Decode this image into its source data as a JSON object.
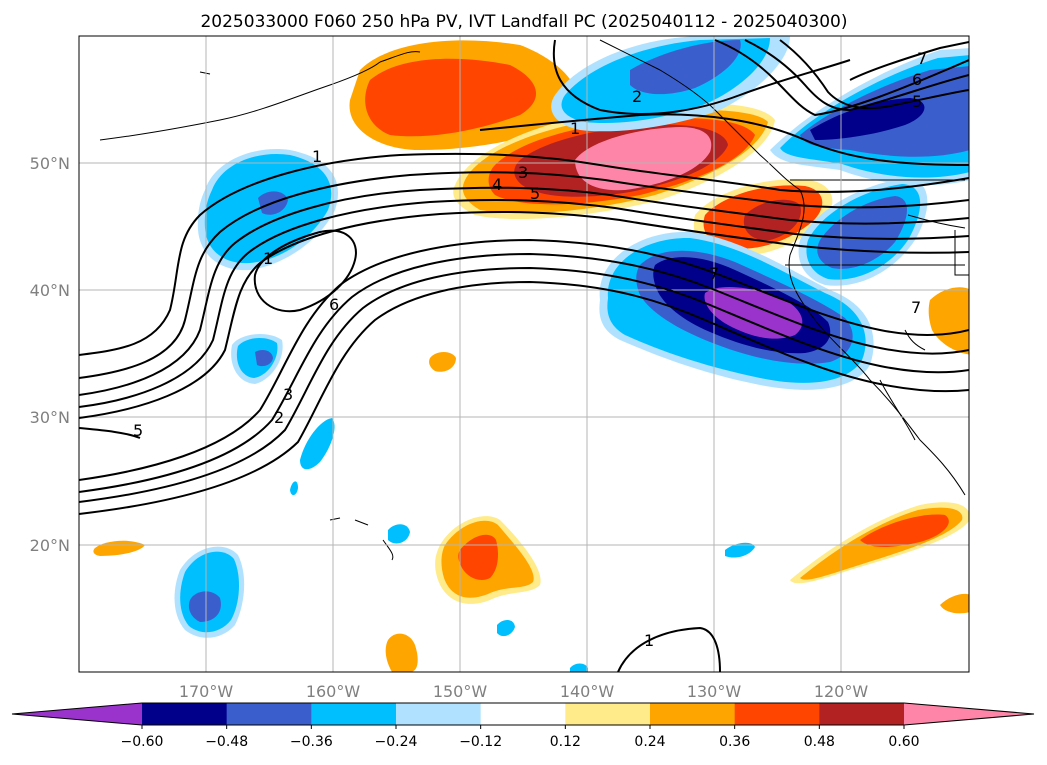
{
  "title": "2025033000 F060 250 hPa PV, IVT Landfall PC (2025040112 - 2025040300)",
  "map": {
    "lon_range": [
      -180,
      -110
    ],
    "lat_range": [
      10,
      60
    ],
    "lat_ticks": [
      {
        "value": 50,
        "label": "50°N"
      },
      {
        "value": 40,
        "label": "40°N"
      },
      {
        "value": 30,
        "label": "30°N"
      },
      {
        "value": 20,
        "label": "20°N"
      }
    ],
    "lon_ticks": [
      {
        "value": -170,
        "label": "170°W"
      },
      {
        "value": -160,
        "label": "160°W"
      },
      {
        "value": -150,
        "label": "150°W"
      },
      {
        "value": -140,
        "label": "140°W"
      },
      {
        "value": -130,
        "label": "130°W"
      },
      {
        "value": -120,
        "label": "120°W"
      }
    ],
    "gridlines": true,
    "contour_labels": [
      "7",
      "6",
      "5",
      "2",
      "1",
      "1",
      "3",
      "4",
      "5",
      "1",
      "7",
      "6",
      "3",
      "2",
      "5",
      "7",
      "1"
    ]
  },
  "colorbar": {
    "ticks": [
      "−0.60",
      "−0.48",
      "−0.36",
      "−0.24",
      "−0.12",
      "0.12",
      "0.24",
      "0.36",
      "0.48",
      "0.60"
    ],
    "colors": [
      "#9933cc",
      "#00008b",
      "#3a5fcd",
      "#00bfff",
      "#b0e2ff",
      "#ffffff",
      "#ffeb8a",
      "#ffa500",
      "#ff4500",
      "#b22222",
      "#ff85a8"
    ],
    "extend": "both"
  },
  "colors": {
    "purple": "#9933cc",
    "navy": "#00008b",
    "royal": "#3a5fcd",
    "sky": "#00bfff",
    "lightblue": "#b0e2ff",
    "yellow": "#ffeb8a",
    "orange": "#ffa500",
    "redorange": "#ff4500",
    "firebrick": "#b22222",
    "pink": "#ff85a8"
  }
}
